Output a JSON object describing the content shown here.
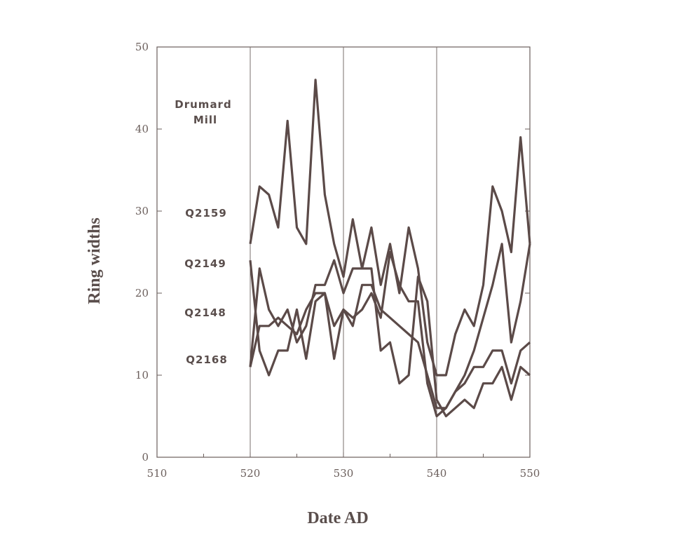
{
  "chart_data": {
    "type": "line",
    "title": "",
    "annotation": [
      "Drumard",
      "Mill"
    ],
    "xlabel": "Date AD",
    "ylabel": "Ring widths",
    "xlim": [
      510,
      550
    ],
    "ylim": [
      0,
      50
    ],
    "x_ticks": [
      "510",
      "520",
      "530",
      "540",
      "550"
    ],
    "y_ticks": [
      "0",
      "10",
      "20",
      "30",
      "40",
      "50"
    ],
    "vertical_gridlines_at": [
      520,
      530,
      540
    ],
    "x": [
      520,
      521,
      522,
      523,
      524,
      525,
      526,
      527,
      528,
      529,
      530,
      531,
      532,
      533,
      534,
      535,
      536,
      537,
      538,
      539,
      540,
      541,
      542,
      543,
      544,
      545,
      546,
      547,
      548,
      549,
      550
    ],
    "series": [
      {
        "name": "Q2159",
        "values": [
          26,
          33,
          32,
          28,
          41,
          28,
          26,
          46,
          32,
          26,
          22,
          29,
          23,
          28,
          21,
          26,
          20,
          28,
          23,
          14,
          10,
          10,
          15,
          18,
          16,
          21,
          33,
          30,
          25,
          39,
          26
        ]
      },
      {
        "name": "Q2149",
        "values": [
          24,
          13,
          10,
          13,
          13,
          18,
          12,
          19,
          20,
          12,
          18,
          16,
          21,
          21,
          18,
          17,
          16,
          15,
          14,
          10,
          6,
          6,
          8,
          10,
          13,
          17,
          21,
          26,
          14,
          19,
          26
        ]
      },
      {
        "name": "Q2148",
        "values": [
          11,
          23,
          18,
          16,
          18,
          14,
          16,
          21,
          21,
          24,
          20,
          23,
          23,
          23,
          13,
          14,
          9,
          10,
          22,
          19,
          7,
          5,
          6,
          7,
          6,
          9,
          9,
          11,
          7,
          11,
          10
        ]
      },
      {
        "name": "Q2168",
        "values": [
          11,
          16,
          16,
          17,
          16,
          15,
          18,
          20,
          20,
          16,
          18,
          17,
          18,
          20,
          17,
          25,
          21,
          19,
          19,
          9,
          5,
          6,
          8,
          9,
          11,
          11,
          13,
          13,
          9,
          13,
          14
        ]
      }
    ]
  }
}
